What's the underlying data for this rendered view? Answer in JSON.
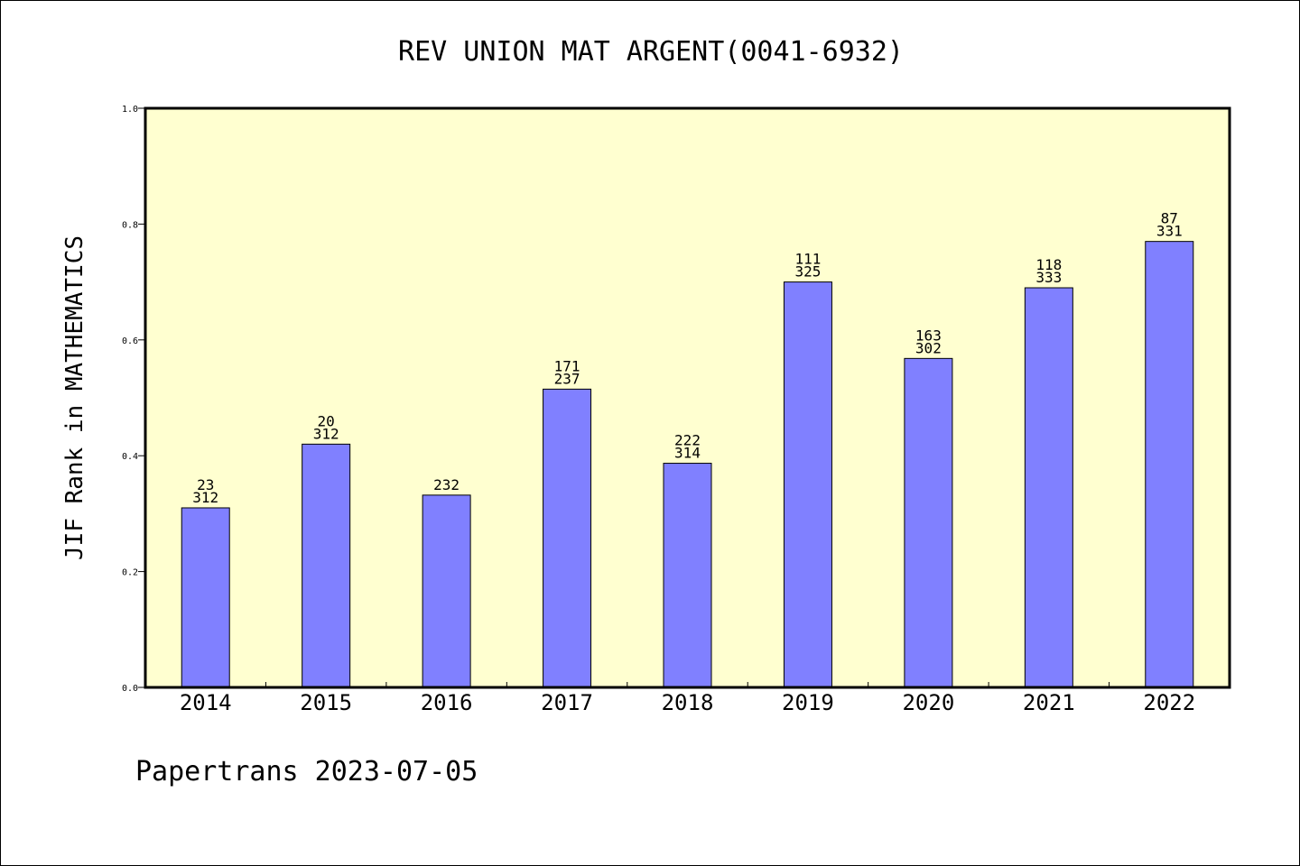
{
  "chart_data": {
    "type": "bar",
    "title": "REV UNION MAT ARGENT(0041-6932)",
    "ylabel": "JIF Rank in MATHEMATICS",
    "xlabel": "",
    "categories": [
      "2014",
      "2015",
      "2016",
      "2017",
      "2018",
      "2019",
      "2020",
      "2021",
      "2022"
    ],
    "values": [
      0.31,
      0.42,
      0.332,
      0.515,
      0.387,
      0.7,
      0.568,
      0.69,
      0.77
    ],
    "bar_labels": [
      {
        "rank": "23",
        "total": "312"
      },
      {
        "rank": "20",
        "total": "312"
      },
      {
        "rank": "",
        "total": "232"
      },
      {
        "rank": "171",
        "total": "237"
      },
      {
        "rank": "222",
        "total": "314"
      },
      {
        "rank": "111",
        "total": "325"
      },
      {
        "rank": "163",
        "total": "302"
      },
      {
        "rank": "118",
        "total": "333"
      },
      {
        "rank": "87",
        "total": "331"
      }
    ],
    "ylim": [
      0,
      1.0
    ],
    "yticks": [
      "0.0",
      "0.2",
      "0.4",
      "0.6",
      "0.8",
      "1.0"
    ],
    "grid": false,
    "colors": {
      "plot_background": "#ffffd0",
      "bar_fill": "#8080ff",
      "bar_stroke": "#000000"
    }
  },
  "footer": "Papertrans 2023-07-05"
}
